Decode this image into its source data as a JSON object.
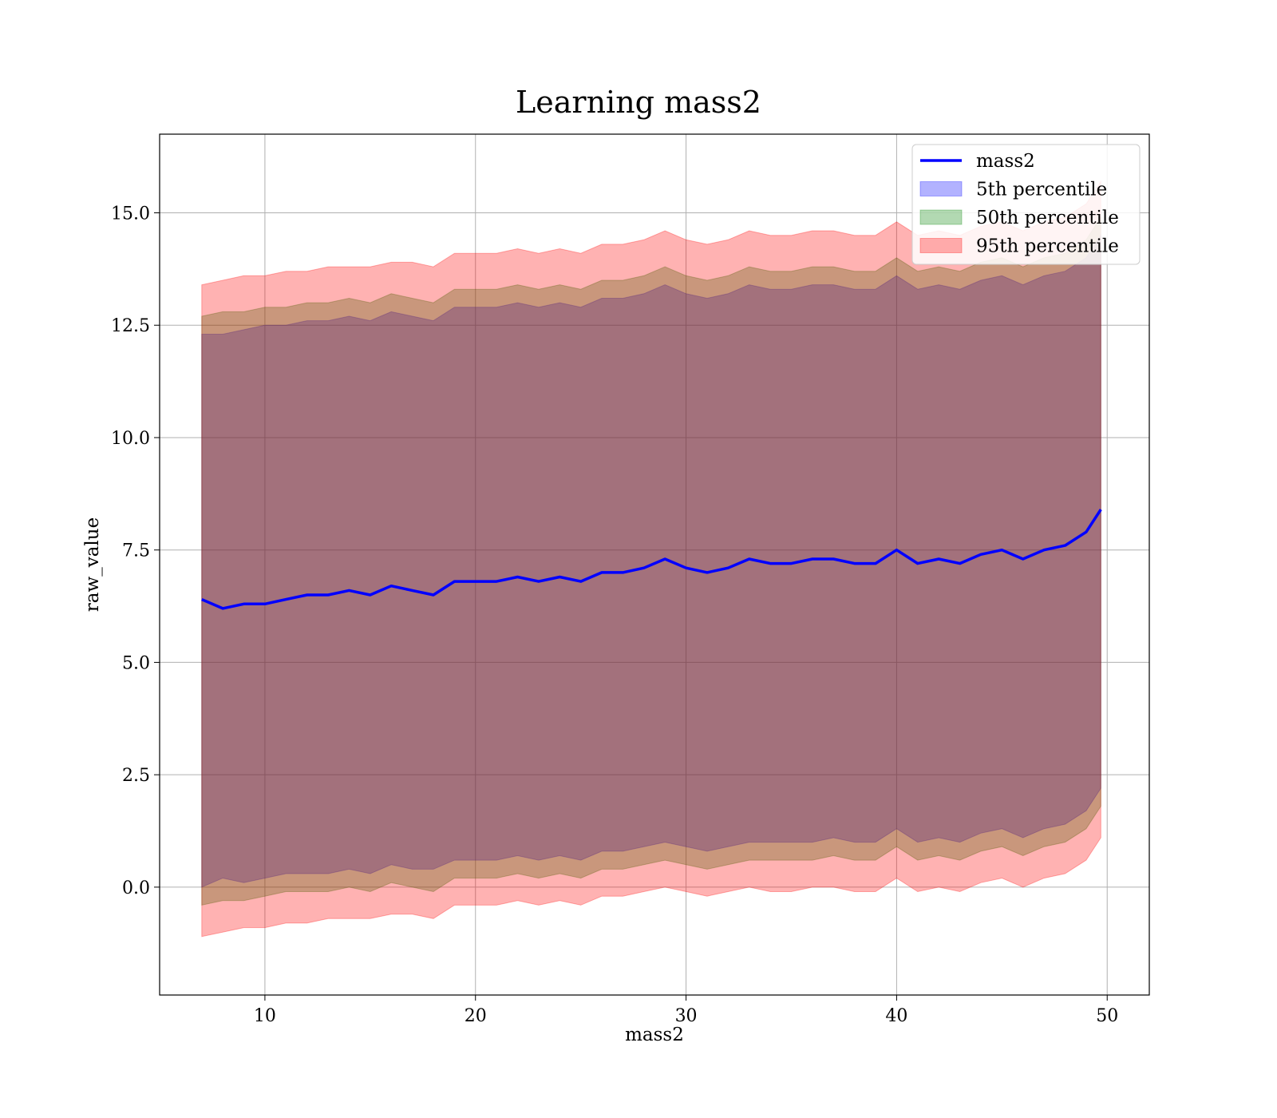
{
  "chart_data": {
    "type": "area",
    "title": "Learning mass2",
    "xlabel": "mass2",
    "ylabel": "raw_value",
    "xlim": [
      5,
      52
    ],
    "ylim": [
      -2.4,
      16.75
    ],
    "xticks": [
      10,
      20,
      30,
      40,
      50
    ],
    "xtick_labels": [
      "10",
      "20",
      "30",
      "40",
      "50"
    ],
    "yticks": [
      0.0,
      2.5,
      5.0,
      7.5,
      10.0,
      12.5,
      15.0
    ],
    "ytick_labels": [
      "0.0",
      "2.5",
      "5.0",
      "7.5",
      "10.0",
      "12.5",
      "15.0"
    ],
    "grid": true,
    "legend_position": "top-right",
    "legend": [
      "mass2",
      "5th percentile",
      "50th percentile",
      "95th percentile"
    ],
    "x": [
      7,
      8,
      9,
      10,
      11,
      12,
      13,
      14,
      15,
      16,
      17,
      18,
      19,
      20,
      21,
      22,
      23,
      24,
      25,
      26,
      27,
      28,
      29,
      30,
      31,
      32,
      33,
      34,
      35,
      36,
      37,
      38,
      39,
      40,
      41,
      42,
      43,
      44,
      45,
      46,
      47,
      48,
      49,
      49.7
    ],
    "series": [
      {
        "name": "mass2",
        "kind": "line",
        "color": "#0000ff",
        "values": [
          6.4,
          6.2,
          6.3,
          6.3,
          6.4,
          6.5,
          6.5,
          6.6,
          6.5,
          6.7,
          6.6,
          6.5,
          6.8,
          6.8,
          6.8,
          6.9,
          6.8,
          6.9,
          6.8,
          7.0,
          7.0,
          7.1,
          7.3,
          7.1,
          7.0,
          7.1,
          7.3,
          7.2,
          7.2,
          7.3,
          7.3,
          7.2,
          7.2,
          7.5,
          7.2,
          7.3,
          7.2,
          7.4,
          7.5,
          7.3,
          7.5,
          7.6,
          7.9,
          8.4
        ]
      },
      {
        "name": "5th percentile",
        "kind": "band",
        "color": "#0000ff",
        "lower": [
          0.0,
          0.2,
          0.1,
          0.2,
          0.3,
          0.3,
          0.3,
          0.4,
          0.3,
          0.5,
          0.4,
          0.4,
          0.6,
          0.6,
          0.6,
          0.7,
          0.6,
          0.7,
          0.6,
          0.8,
          0.8,
          0.9,
          1.0,
          0.9,
          0.8,
          0.9,
          1.0,
          1.0,
          1.0,
          1.0,
          1.1,
          1.0,
          1.0,
          1.3,
          1.0,
          1.1,
          1.0,
          1.2,
          1.3,
          1.1,
          1.3,
          1.4,
          1.7,
          2.2
        ],
        "upper": [
          12.3,
          12.3,
          12.4,
          12.5,
          12.5,
          12.6,
          12.6,
          12.7,
          12.6,
          12.8,
          12.7,
          12.6,
          12.9,
          12.9,
          12.9,
          13.0,
          12.9,
          13.0,
          12.9,
          13.1,
          13.1,
          13.2,
          13.4,
          13.2,
          13.1,
          13.2,
          13.4,
          13.3,
          13.3,
          13.4,
          13.4,
          13.3,
          13.3,
          13.6,
          13.3,
          13.4,
          13.3,
          13.5,
          13.6,
          13.4,
          13.6,
          13.7,
          14.0,
          14.5
        ]
      },
      {
        "name": "50th percentile",
        "kind": "band",
        "color": "#008000",
        "lower": [
          -0.4,
          -0.3,
          -0.3,
          -0.2,
          -0.1,
          -0.1,
          -0.1,
          0.0,
          -0.1,
          0.1,
          0.0,
          -0.1,
          0.2,
          0.2,
          0.2,
          0.3,
          0.2,
          0.3,
          0.2,
          0.4,
          0.4,
          0.5,
          0.6,
          0.5,
          0.4,
          0.5,
          0.6,
          0.6,
          0.6,
          0.6,
          0.7,
          0.6,
          0.6,
          0.9,
          0.6,
          0.7,
          0.6,
          0.8,
          0.9,
          0.7,
          0.9,
          1.0,
          1.3,
          1.8
        ],
        "upper": [
          12.7,
          12.8,
          12.8,
          12.9,
          12.9,
          13.0,
          13.0,
          13.1,
          13.0,
          13.2,
          13.1,
          13.0,
          13.3,
          13.3,
          13.3,
          13.4,
          13.3,
          13.4,
          13.3,
          13.5,
          13.5,
          13.6,
          13.8,
          13.6,
          13.5,
          13.6,
          13.8,
          13.7,
          13.7,
          13.8,
          13.8,
          13.7,
          13.7,
          14.0,
          13.7,
          13.8,
          13.7,
          13.9,
          14.0,
          13.8,
          14.0,
          14.1,
          14.4,
          14.9
        ]
      },
      {
        "name": "95th percentile",
        "kind": "band",
        "color": "#ff0000",
        "lower": [
          -1.1,
          -1.0,
          -0.9,
          -0.9,
          -0.8,
          -0.8,
          -0.7,
          -0.7,
          -0.7,
          -0.6,
          -0.6,
          -0.7,
          -0.4,
          -0.4,
          -0.4,
          -0.3,
          -0.4,
          -0.3,
          -0.4,
          -0.2,
          -0.2,
          -0.1,
          0.0,
          -0.1,
          -0.2,
          -0.1,
          0.0,
          -0.1,
          -0.1,
          0.0,
          0.0,
          -0.1,
          -0.1,
          0.2,
          -0.1,
          0.0,
          -0.1,
          0.1,
          0.2,
          0.0,
          0.2,
          0.3,
          0.6,
          1.1
        ],
        "upper": [
          13.4,
          13.5,
          13.6,
          13.6,
          13.7,
          13.7,
          13.8,
          13.8,
          13.8,
          13.9,
          13.9,
          13.8,
          14.1,
          14.1,
          14.1,
          14.2,
          14.1,
          14.2,
          14.1,
          14.3,
          14.3,
          14.4,
          14.6,
          14.4,
          14.3,
          14.4,
          14.6,
          14.5,
          14.5,
          14.6,
          14.6,
          14.5,
          14.5,
          14.8,
          14.5,
          14.6,
          14.5,
          14.7,
          14.8,
          14.6,
          14.8,
          14.9,
          15.2,
          15.7
        ]
      }
    ]
  }
}
